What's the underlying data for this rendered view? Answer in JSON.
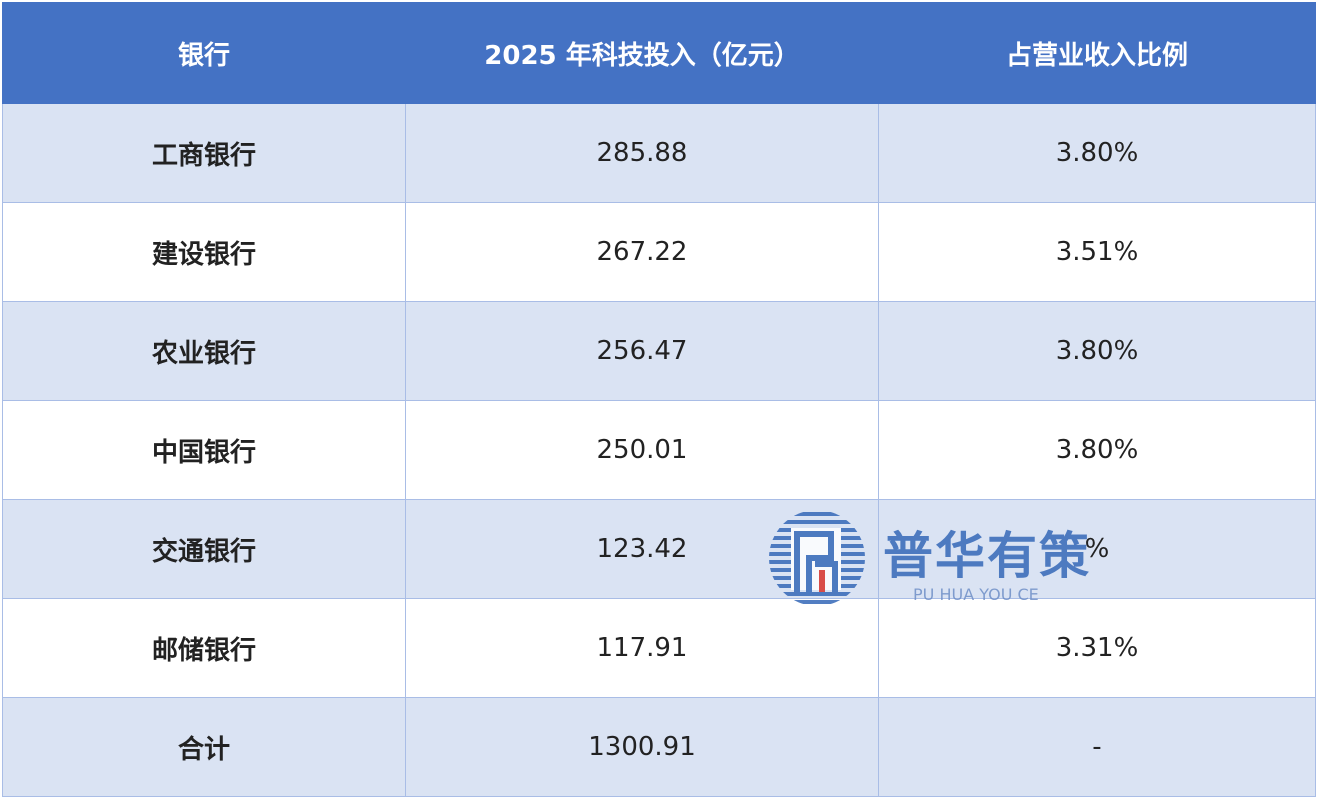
{
  "table": {
    "header": [
      "银行",
      "2025 年科技投入（亿元）",
      "占营业收入比例"
    ],
    "rows": [
      [
        "工商银行",
        "285.88",
        "3.80%"
      ],
      [
        "建设银行",
        "267.22",
        "3.51%"
      ],
      [
        "农业银行",
        "256.47",
        "3.80%"
      ],
      [
        "中国银行",
        "250.01",
        "3.80%"
      ],
      [
        "交通银行",
        "123.42",
        "%"
      ],
      [
        "邮储银行",
        "117.91",
        "3.31%"
      ],
      [
        "合计",
        "1300.91",
        "-"
      ]
    ]
  },
  "watermark": {
    "name": "普华有策",
    "subtitle": "PU HUA YOU CE"
  }
}
